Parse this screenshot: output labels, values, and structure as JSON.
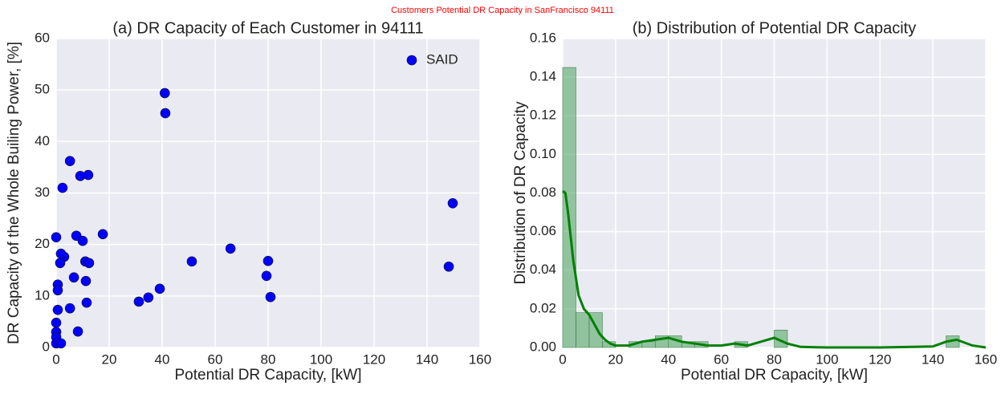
{
  "suptitle": "Customers Potential DR Capacity in SanFrancisco 94111",
  "chart_data": [
    {
      "type": "scatter",
      "title": "(a) DR Capacity of Each Customer in 94111",
      "xlabel": "Potential DR Capacity, [kW]",
      "ylabel": "DR Capacity of the Whole Builing Power, [%]",
      "xlim": [
        0,
        160
      ],
      "xticks": [
        0,
        20,
        40,
        60,
        80,
        100,
        120,
        140,
        160
      ],
      "ylim": [
        0,
        60
      ],
      "yticks": [
        0,
        10,
        20,
        30,
        40,
        50,
        60
      ],
      "grid": true,
      "legend": "upper right",
      "series": [
        {
          "name": "SAID",
          "color": "#0000ff",
          "x": [
            2.4,
            5.2,
            9.1,
            12.1,
            7.6,
            10,
            17.6,
            3,
            1.8,
            1.5,
            11,
            12.4,
            6.7,
            11.2,
            0.6,
            0.6,
            5.2,
            11.5,
            8.2,
            0,
            0,
            0,
            0,
            0,
            1.8,
            0.6,
            41,
            41.2,
            31.2,
            34.8,
            39.1,
            51.2,
            65.8,
            80,
            79.4,
            80.9,
            149.7,
            148.2
          ],
          "values": [
            31,
            36.2,
            33.3,
            33.5,
            21.7,
            20.7,
            22,
            17.6,
            18.2,
            16.4,
            16.7,
            16.4,
            13.6,
            12.9,
            12.2,
            11.1,
            7.6,
            8.7,
            3.1,
            21.4,
            4.8,
            3,
            2,
            0.8,
            0.8,
            7.3,
            49.4,
            45.5,
            8.9,
            9.7,
            11.4,
            16.7,
            19.2,
            16.8,
            13.9,
            9.8,
            28,
            15.7
          ]
        }
      ]
    },
    {
      "type": "histogram",
      "title": "(b) Distribution of Potential DR Capacity",
      "xlabel": "Potential DR Capacity, [kW]",
      "ylabel": "Distribution of DR Capacity",
      "xlim": [
        0,
        160
      ],
      "xticks": [
        0,
        20,
        40,
        60,
        80,
        100,
        120,
        140,
        160
      ],
      "ylim": [
        0,
        0.16
      ],
      "yticks": [
        {
          "value": 0,
          "label": "0.00"
        },
        {
          "value": 0.02,
          "label": "0.02"
        },
        {
          "value": 0.04,
          "label": "0.04"
        },
        {
          "value": 0.06,
          "label": "0.06"
        },
        {
          "value": 0.08,
          "label": "0.08"
        },
        {
          "value": 0.1,
          "label": "0.10"
        },
        {
          "value": 0.12,
          "label": "0.12"
        },
        {
          "value": 0.14,
          "label": "0.14"
        },
        {
          "value": 0.16,
          "label": "0.16"
        }
      ],
      "grid": true,
      "color": "#55a868",
      "kde_color": "#008000",
      "bins": [
        0,
        5,
        10,
        15,
        20,
        25,
        30,
        35,
        40,
        45,
        50,
        55,
        60,
        65,
        70,
        75,
        80,
        85,
        90,
        95,
        100,
        105,
        110,
        115,
        120,
        125,
        130,
        135,
        140,
        145,
        150
      ],
      "values": [
        0.145,
        0.018,
        0.018,
        0.003,
        0,
        0.003,
        0.003,
        0.006,
        0.006,
        0.003,
        0.003,
        0,
        0,
        0.003,
        0,
        0,
        0.009,
        0,
        0,
        0,
        0,
        0,
        0,
        0,
        0,
        0,
        0,
        0,
        0,
        0.006
      ],
      "kde": {
        "x": [
          0,
          1,
          2,
          4,
          6,
          8,
          10,
          12,
          14,
          16,
          18,
          20,
          25,
          30,
          35,
          40,
          45,
          50,
          55,
          60,
          65,
          70,
          75,
          80,
          85,
          90,
          100,
          120,
          140,
          145,
          149,
          155,
          160
        ],
        "values": [
          0.081,
          0.08,
          0.07,
          0.045,
          0.027,
          0.02,
          0.017,
          0.012,
          0.007,
          0.004,
          0.002,
          0.001,
          0.001,
          0.003,
          0.004,
          0.005,
          0.003,
          0.002,
          0.001,
          0.001,
          0.002,
          0.001,
          0.003,
          0.005,
          0.002,
          0.0003,
          0,
          0,
          0.0005,
          0.003,
          0.004,
          0.001,
          0
        ]
      }
    }
  ]
}
